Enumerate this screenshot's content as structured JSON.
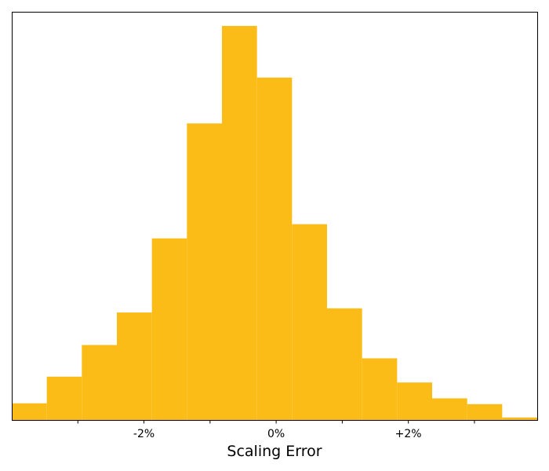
{
  "chart_data": {
    "type": "bar",
    "subtype": "histogram",
    "title": "",
    "xlabel": "Scaling Error",
    "ylabel": "",
    "bin_width": 0.53,
    "bin_edges": [
      -4.0,
      -3.47,
      -2.94,
      -2.41,
      -1.88,
      -1.35,
      -0.82,
      -0.29,
      0.24,
      0.77,
      1.3,
      1.83,
      2.36,
      2.89,
      3.42,
      3.95
    ],
    "values": [
      20,
      52,
      90,
      129,
      218,
      356,
      473,
      411,
      235,
      134,
      74,
      45,
      26,
      19,
      3
    ],
    "xlim": [
      -4.0,
      3.95
    ],
    "ylim": [
      0,
      490
    ],
    "x_ticks": [
      {
        "value": -3,
        "label": ""
      },
      {
        "value": -2,
        "label": "-2%"
      },
      {
        "value": -1,
        "label": ""
      },
      {
        "value": 0,
        "label": "0%"
      },
      {
        "value": 1,
        "label": ""
      },
      {
        "value": 2,
        "label": "+2%"
      },
      {
        "value": 3,
        "label": ""
      }
    ],
    "y_ticks": [],
    "grid": false,
    "legend": "none",
    "bar_color": "#FCBC17"
  }
}
